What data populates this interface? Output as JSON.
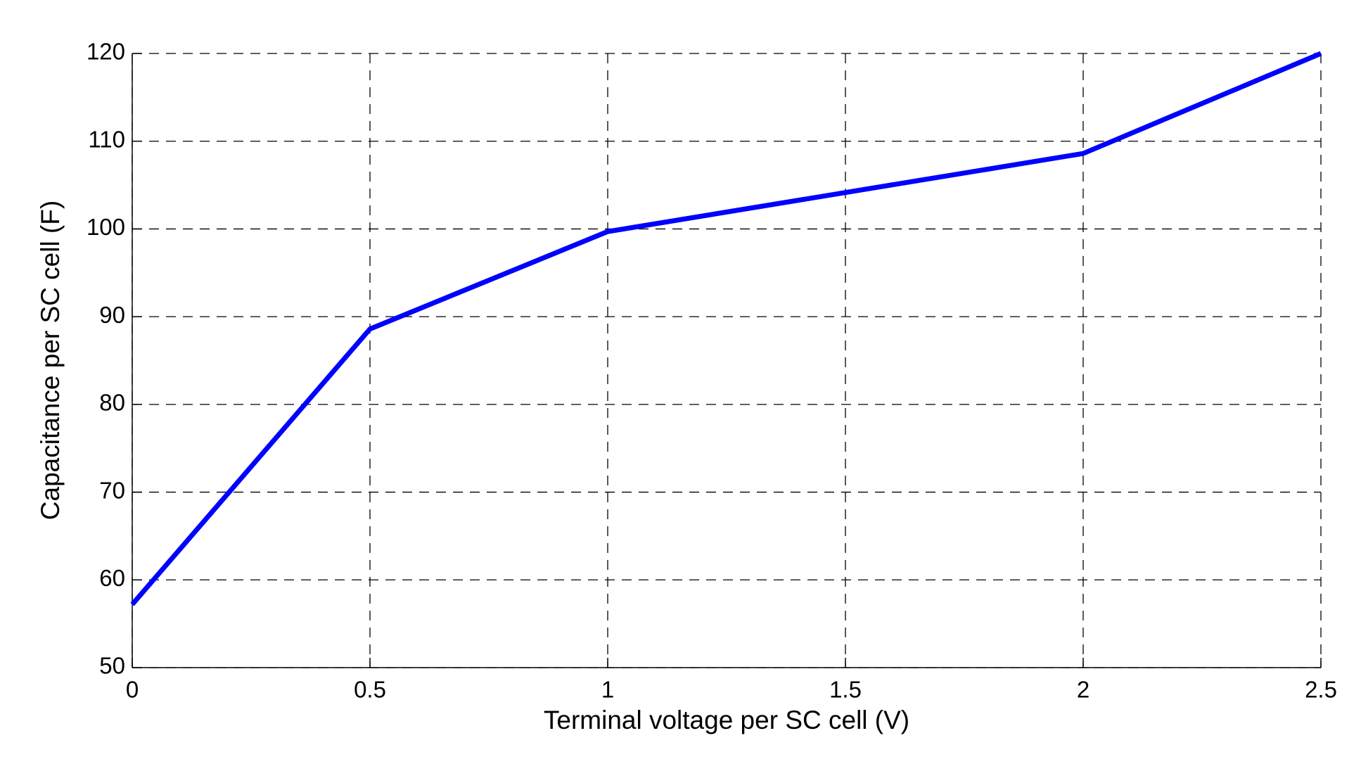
{
  "chart_data": {
    "type": "line",
    "x_label": "Terminal voltage per SC cell (V)",
    "y_label": "Capacitance per SC cell (F)",
    "series": [
      {
        "color": "#0000ff",
        "x": [
          0,
          0.5,
          1,
          2,
          2.5
        ],
        "values": [
          57.2,
          88.6,
          99.7,
          108.6,
          120
        ]
      }
    ],
    "xlim": [
      0,
      2.5
    ],
    "xticks": [
      0,
      0.5,
      1,
      1.5,
      2,
      2.5
    ],
    "ylim": [
      50,
      120
    ],
    "yticks": [
      50,
      60,
      70,
      80,
      90,
      100,
      110,
      120
    ],
    "grid": true
  }
}
